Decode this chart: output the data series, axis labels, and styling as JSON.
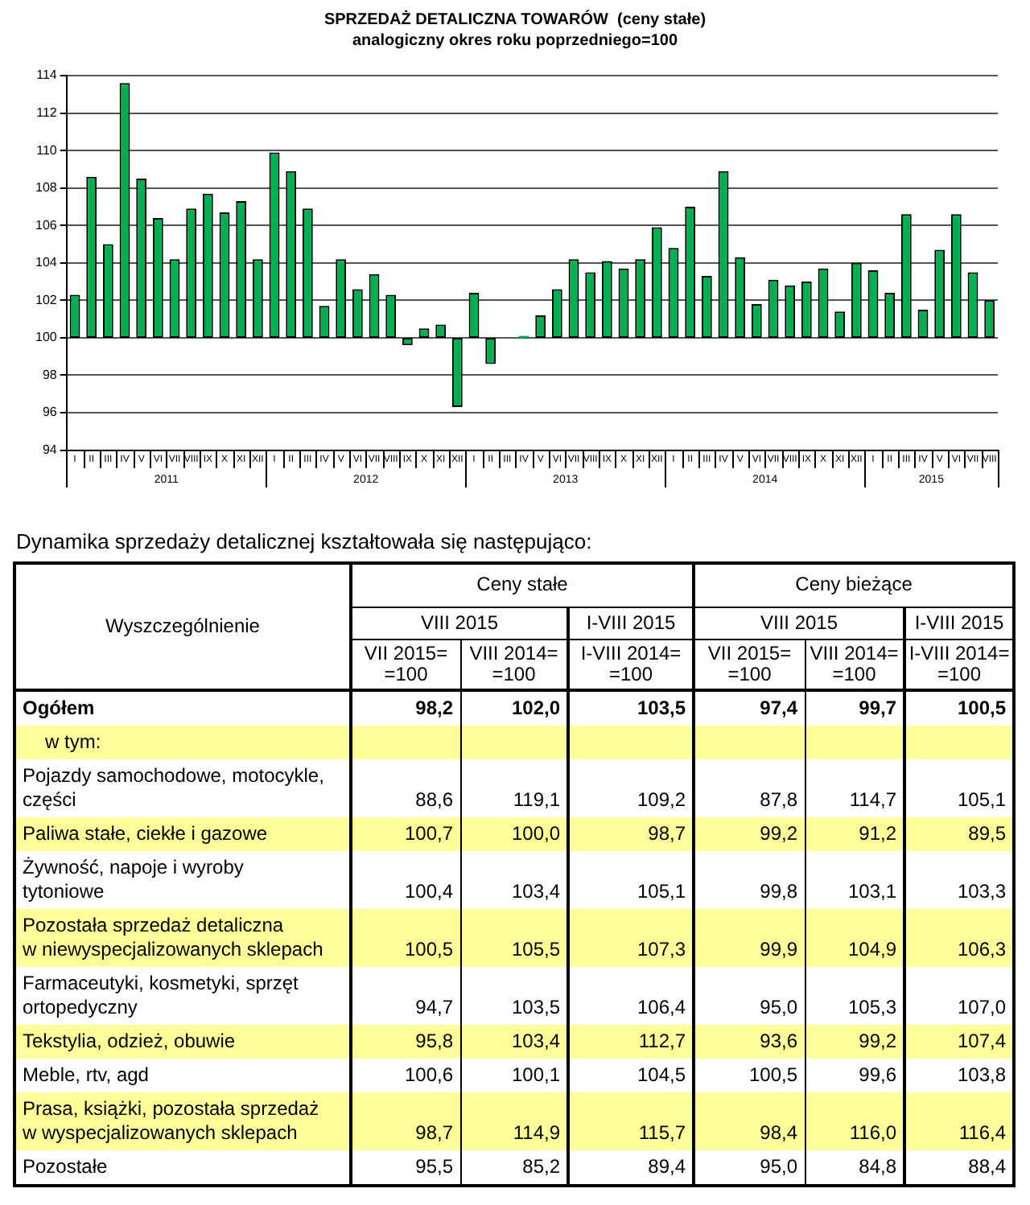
{
  "chart_data": [
    {
      "type": "bar",
      "title": "SPRZEDAŻ DETALICZNA TOWARÓW  (ceny stałe)",
      "subtitle": "analogiczny okres roku poprzedniego=100",
      "categories": [
        "I",
        "II",
        "III",
        "IV",
        "V",
        "VI",
        "VII",
        "VIII",
        "IX",
        "X",
        "XI",
        "XII",
        "I",
        "II",
        "III",
        "IV",
        "V",
        "VI",
        "VII",
        "VIII",
        "IX",
        "X",
        "XI",
        "XII",
        "I",
        "II",
        "III",
        "IV",
        "V",
        "VI",
        "VII",
        "VIII",
        "IX",
        "X",
        "XI",
        "XII",
        "I",
        "II",
        "III",
        "IV",
        "V",
        "VI",
        "VII",
        "VIII",
        "IX",
        "X",
        "XI",
        "XII",
        "I",
        "II",
        "III",
        "IV",
        "V",
        "VI",
        "VII",
        "VIII"
      ],
      "base": [
        100,
        100,
        100,
        100,
        100,
        100,
        100,
        100,
        100,
        100,
        100,
        100,
        100,
        100,
        100,
        100,
        100,
        100,
        100,
        100,
        100,
        100,
        100,
        100,
        100,
        100,
        null,
        100,
        100,
        100,
        100,
        100,
        100,
        100,
        100,
        100,
        100,
        100,
        100,
        100,
        100,
        100,
        100,
        100,
        100,
        100,
        100,
        100,
        100,
        100,
        100,
        100,
        100,
        100,
        100,
        100
      ],
      "values": [
        2.3,
        8.6,
        5.0,
        13.6,
        8.5,
        6.4,
        4.2,
        6.9,
        7.7,
        6.7,
        7.3,
        4.2,
        9.9,
        8.9,
        6.9,
        1.7,
        4.2,
        2.6,
        3.4,
        2.3,
        -0.4,
        0.5,
        0.7,
        -3.7,
        2.4,
        -1.4,
        null,
        0.1,
        1.2,
        2.6,
        4.2,
        3.5,
        4.1,
        3.7,
        4.2,
        5.9,
        4.8,
        7.0,
        3.3,
        8.9,
        4.3,
        1.8,
        3.1,
        2.8,
        3.0,
        3.7,
        1.4,
        4.0,
        3.6,
        2.4,
        6.6,
        1.5,
        4.7,
        6.6,
        3.5,
        2.0
      ],
      "color": "#00b050",
      "ylim": [
        94,
        114
      ],
      "yticks": [
        94,
        96,
        98,
        100,
        102,
        104,
        106,
        108,
        110,
        112,
        114
      ],
      "grid": "y",
      "annotations": [
        "2011",
        "2012",
        "2013",
        "2014",
        "2015"
      ]
    },
    {
      "type": "other",
      "title": "Dynamika sprzedaży detalicznej kształtowała się następująco:",
      "annotations": [
        "Wyszczególnienie",
        "Ceny stałe",
        "Ceny bieżące",
        "VIII 2015",
        "I-VIII 2015",
        "VIII 2015",
        "I-VIII 2015"
      ],
      "categories": [
        "VII 2015=\n=100",
        "VIII 2014=\n=100",
        "I-VIII 2014=\n=100",
        "VII 2015=\n=100",
        "VIII 2014=\n=100",
        "I-VIII 2014=\n=100"
      ],
      "y_categories": [
        "Ogółem",
        "w tym:",
        "Pojazdy samochodowe, motocykle,\nczęści",
        "Paliwa stałe, ciekłe i gazowe",
        "Żywność, napoje i wyroby\ntytoniowe",
        "Pozostała sprzedaż detaliczna\nw niewyspecjalizowanych sklepach",
        "Farmaceutyki, kosmetyki, sprzęt\nortopedyczny",
        "Tekstylia, odzież, obuwie",
        "Meble, rtv, agd",
        "Prasa, książki, pozostała sprzedaż\nw wyspecjalizowanych sklepach",
        "Pozostałe"
      ],
      "cell_labels": [
        [
          "98,2",
          "102,0",
          "103,5",
          "97,4",
          "99,7",
          "100,5"
        ],
        [
          null,
          null,
          null,
          null,
          null,
          null
        ],
        [
          "88,6",
          "119,1",
          "109,2",
          "87,8",
          "114,7",
          "105,1"
        ],
        [
          "100,7",
          "100,0",
          "98,7",
          "99,2",
          "91,2",
          "89,5"
        ],
        [
          "100,4",
          "103,4",
          "105,1",
          "99,8",
          "103,1",
          "103,3"
        ],
        [
          "100,5",
          "105,5",
          "107,3",
          "99,9",
          "104,9",
          "106,3"
        ],
        [
          "94,7",
          "103,5",
          "106,4",
          "95,0",
          "105,3",
          "107,0"
        ],
        [
          "95,8",
          "103,4",
          "112,7",
          "93,6",
          "99,2",
          "107,4"
        ],
        [
          "100,6",
          "100,1",
          "104,5",
          "100,5",
          "99,6",
          "103,8"
        ],
        [
          "98,7",
          "114,9",
          "115,7",
          "98,4",
          "116,0",
          "116,4"
        ],
        [
          "95,5",
          "85,2",
          "89,4",
          "95,0",
          "84,8",
          "88,4"
        ]
      ]
    }
  ]
}
